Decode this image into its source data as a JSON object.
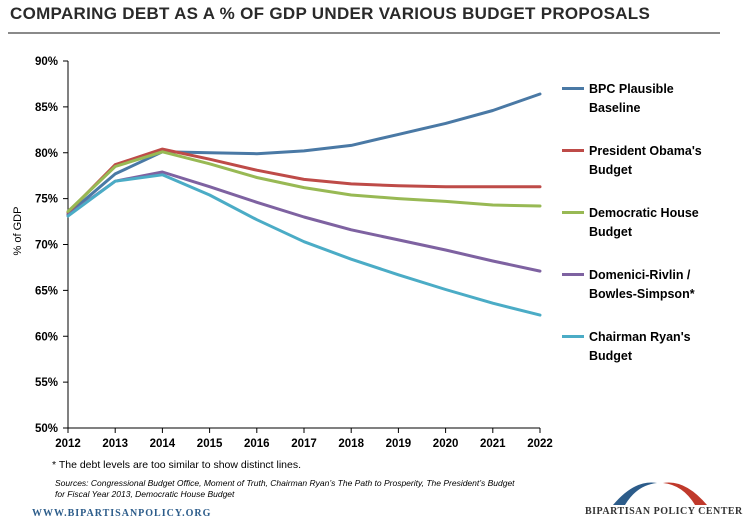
{
  "header": {
    "title": "COMPARING DEBT AS A % OF GDP UNDER VARIOUS BUDGET PROPOSALS"
  },
  "colors": {
    "bpc": "#4a79a5",
    "obama": "#be4b48",
    "house": "#98b954",
    "domenici": "#7e62a1",
    "ryan": "#4bacc6"
  },
  "chart_data": {
    "type": "line",
    "title": "COMPARING DEBT AS A % OF GDP UNDER VARIOUS BUDGET PROPOSALS",
    "xlabel": "",
    "ylabel": "% of GDP",
    "ylim": [
      50,
      90
    ],
    "yticks": [
      50,
      55,
      60,
      65,
      70,
      75,
      80,
      85,
      90
    ],
    "ytick_labels": [
      "50%",
      "55%",
      "60%",
      "65%",
      "70%",
      "75%",
      "80%",
      "85%",
      "90%"
    ],
    "x": [
      "2012",
      "2013",
      "2014",
      "2015",
      "2016",
      "2017",
      "2018",
      "2019",
      "2020",
      "2021",
      "2022"
    ],
    "legend_position": "right",
    "series": [
      {
        "name": "BPC Plausible Baseline",
        "color_key": "bpc",
        "values": [
          73.3,
          77.7,
          80.1,
          80.0,
          79.9,
          80.2,
          80.8,
          82.0,
          83.2,
          84.6,
          86.4
        ]
      },
      {
        "name": "President Obama's Budget",
        "color_key": "obama",
        "values": [
          73.5,
          78.7,
          80.4,
          79.3,
          78.1,
          77.1,
          76.6,
          76.4,
          76.3,
          76.3,
          76.3
        ]
      },
      {
        "name": "Democratic House Budget",
        "color_key": "house",
        "values": [
          73.6,
          78.5,
          80.1,
          78.8,
          77.3,
          76.2,
          75.4,
          75.0,
          74.7,
          74.3,
          74.2
        ]
      },
      {
        "name": "Domenici-Rivlin / Bowles-Simpson*",
        "color_key": "domenici",
        "values": [
          73.2,
          76.9,
          77.9,
          76.3,
          74.6,
          73.0,
          71.6,
          70.5,
          69.4,
          68.2,
          67.1
        ]
      },
      {
        "name": "Chairman Ryan's Budget",
        "color_key": "ryan",
        "values": [
          73.1,
          76.9,
          77.6,
          75.4,
          72.7,
          70.3,
          68.4,
          66.7,
          65.1,
          63.6,
          62.3
        ]
      }
    ]
  },
  "legend": [
    {
      "line1": "BPC Plausible",
      "line2": "Baseline",
      "color_key": "bpc"
    },
    {
      "line1": "President Obama's",
      "line2": "Budget",
      "color_key": "obama"
    },
    {
      "line1": "Democratic House",
      "line2": "Budget",
      "color_key": "house"
    },
    {
      "line1": "Domenici-Rivlin /",
      "line2": "Bowles-Simpson*",
      "color_key": "domenici"
    },
    {
      "line1": "Chairman Ryan's",
      "line2": "Budget",
      "color_key": "ryan"
    }
  ],
  "footnote": "* The debt levels are too similar to show distinct lines.",
  "sources": "Sources: Congressional Budget Office, Moment of Truth, Chairman Ryan’s The Path to Prosperity, The President’s Budget for Fiscal Year 2013, Democratic House Budget",
  "footer": {
    "website": "WWW.BIPARTISANPOLICY.ORG",
    "logo_text": "BIPARTISAN POLICY CENTER"
  }
}
